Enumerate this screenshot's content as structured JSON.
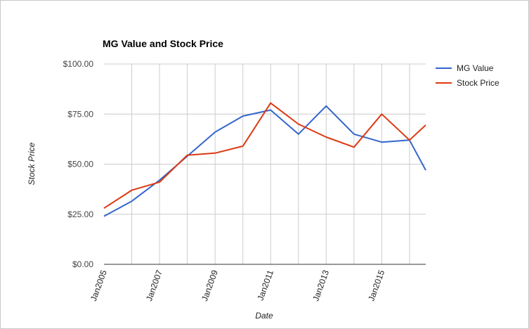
{
  "chart_data": {
    "type": "line",
    "title": "MG Value and Stock Price",
    "xlabel": "Date",
    "ylabel": "Stock Price",
    "x_tick_labels": [
      "Jan2005",
      "Jan2007",
      "Jan2009",
      "Jan2011",
      "Jan2013",
      "Jan2015"
    ],
    "y_tick_labels": [
      "$0.00",
      "$25.00",
      "$50.00",
      "$75.00",
      "$100.00"
    ],
    "ylim": [
      0,
      100
    ],
    "xlim": [
      "2005-01",
      "2016-08"
    ],
    "grid": true,
    "legend_position": "right",
    "series": [
      {
        "name": "MG Value",
        "color": "#3366cc",
        "points": [
          {
            "x": "2005-01",
            "y": 24
          },
          {
            "x": "2006-01",
            "y": 31.5
          },
          {
            "x": "2007-01",
            "y": 42
          },
          {
            "x": "2008-01",
            "y": 54
          },
          {
            "x": "2009-01",
            "y": 66
          },
          {
            "x": "2010-01",
            "y": 74
          },
          {
            "x": "2011-01",
            "y": 77
          },
          {
            "x": "2012-01",
            "y": 65
          },
          {
            "x": "2013-01",
            "y": 79
          },
          {
            "x": "2014-01",
            "y": 65
          },
          {
            "x": "2015-01",
            "y": 61
          },
          {
            "x": "2016-01",
            "y": 62
          },
          {
            "x": "2016-08",
            "y": 47
          }
        ]
      },
      {
        "name": "Stock Price",
        "color": "#dc3912",
        "points": [
          {
            "x": "2005-01",
            "y": 28
          },
          {
            "x": "2006-01",
            "y": 37
          },
          {
            "x": "2007-01",
            "y": 41
          },
          {
            "x": "2008-01",
            "y": 54.5
          },
          {
            "x": "2009-01",
            "y": 55.5
          },
          {
            "x": "2010-01",
            "y": 59
          },
          {
            "x": "2011-01",
            "y": 80.5
          },
          {
            "x": "2012-01",
            "y": 70
          },
          {
            "x": "2013-01",
            "y": 63.5
          },
          {
            "x": "2014-01",
            "y": 58.5
          },
          {
            "x": "2015-01",
            "y": 75
          },
          {
            "x": "2016-01",
            "y": 62
          },
          {
            "x": "2016-08",
            "y": 69.5
          }
        ]
      }
    ]
  }
}
